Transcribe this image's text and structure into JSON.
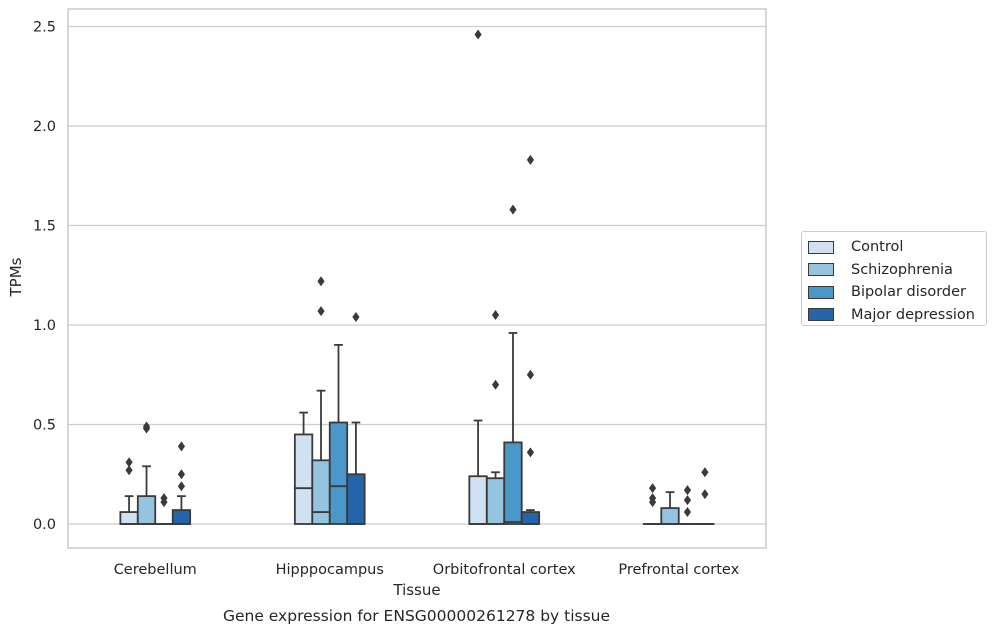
{
  "caption": "Gene expression for ENSG00000261278 by tissue",
  "chart_data": {
    "type": "box",
    "xlabel": "Tissue",
    "ylabel": "TPMs",
    "ylim": [
      -0.12,
      2.59
    ],
    "yticks": [
      "0.0",
      "0.5",
      "1.0",
      "1.5",
      "2.0",
      "2.5"
    ],
    "grid": true,
    "legend_position": "right",
    "categories": [
      "Cerebellum",
      "Hipppocampus",
      "Orbitofrontal cortex",
      "Prefrontal cortex"
    ],
    "series": [
      {
        "name": "Control",
        "color": "#d0e1f2",
        "boxes": [
          {
            "whislo": 0,
            "q1": 0,
            "med": 0,
            "q3": 0.06,
            "whishi": 0.14,
            "fliers": [
              0.27,
              0.31
            ]
          },
          {
            "whislo": 0,
            "q1": 0,
            "med": 0.18,
            "q3": 0.45,
            "whishi": 0.56,
            "fliers": []
          },
          {
            "whislo": 0,
            "q1": 0,
            "med": 0,
            "q3": 0.24,
            "whishi": 0.52,
            "fliers": [
              2.46
            ]
          },
          {
            "whislo": 0,
            "q1": 0,
            "med": 0,
            "q3": 0,
            "whishi": 0,
            "fliers": [
              0.11,
              0.13,
              0.18
            ]
          }
        ]
      },
      {
        "name": "Schizophrenia",
        "color": "#94c4df",
        "boxes": [
          {
            "whislo": 0,
            "q1": 0,
            "med": 0,
            "q3": 0.14,
            "whishi": 0.29,
            "fliers": [
              0.48,
              0.49
            ]
          },
          {
            "whislo": 0,
            "q1": 0,
            "med": 0.06,
            "q3": 0.32,
            "whishi": 0.67,
            "fliers": [
              1.07,
              1.22
            ]
          },
          {
            "whislo": 0,
            "q1": 0,
            "med": 0,
            "q3": 0.23,
            "whishi": 0.26,
            "fliers": [
              0.7,
              1.05
            ]
          },
          {
            "whislo": 0,
            "q1": 0,
            "med": 0,
            "q3": 0.08,
            "whishi": 0.16,
            "fliers": []
          }
        ]
      },
      {
        "name": "Bipolar disorder",
        "color": "#4a98c9",
        "boxes": [
          {
            "whislo": 0,
            "q1": 0,
            "med": 0,
            "q3": 0,
            "whishi": 0,
            "fliers": [
              0.11,
              0.13
            ]
          },
          {
            "whislo": 0,
            "q1": 0,
            "med": 0.19,
            "q3": 0.51,
            "whishi": 0.9,
            "fliers": []
          },
          {
            "whislo": 0,
            "q1": 0,
            "med": 0.01,
            "q3": 0.41,
            "whishi": 0.96,
            "fliers": [
              1.58
            ]
          },
          {
            "whislo": 0,
            "q1": 0,
            "med": 0,
            "q3": 0,
            "whishi": 0,
            "fliers": [
              0.06,
              0.12,
              0.17
            ]
          }
        ]
      },
      {
        "name": "Major depression",
        "color": "#2464aa",
        "boxes": [
          {
            "whislo": 0,
            "q1": 0,
            "med": 0,
            "q3": 0.07,
            "whishi": 0.14,
            "fliers": [
              0.19,
              0.25,
              0.39
            ]
          },
          {
            "whislo": 0,
            "q1": 0,
            "med": 0,
            "q3": 0.25,
            "whishi": 0.51,
            "fliers": [
              1.04
            ]
          },
          {
            "whislo": 0,
            "q1": 0,
            "med": 0,
            "q3": 0.06,
            "whishi": 0.07,
            "fliers": [
              0.36,
              0.75,
              1.83
            ]
          },
          {
            "whislo": 0,
            "q1": 0,
            "med": 0,
            "q3": 0,
            "whishi": 0,
            "fliers": [
              0.15,
              0.26
            ]
          }
        ]
      }
    ]
  }
}
